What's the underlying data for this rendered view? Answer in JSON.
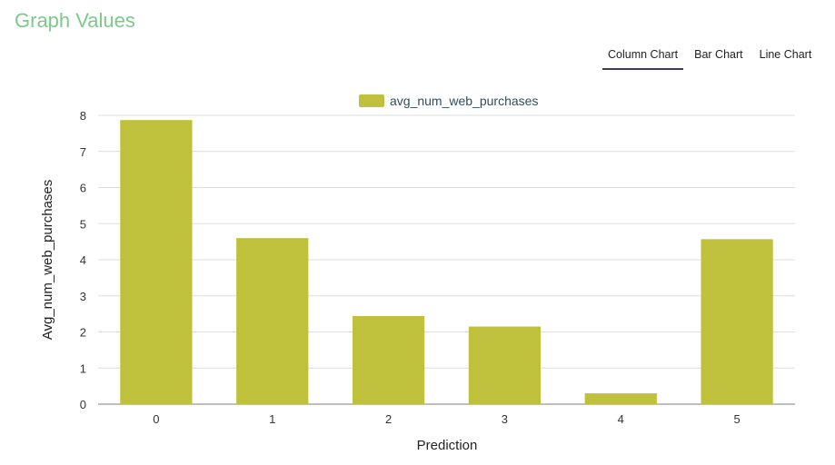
{
  "page": {
    "title": "Graph Values"
  },
  "tabs": [
    {
      "label": "Column Chart",
      "active": true
    },
    {
      "label": "Bar Chart",
      "active": false
    },
    {
      "label": "Line Chart",
      "active": false
    }
  ],
  "colors": {
    "bar": "#bfc13d",
    "grid": "#dddddd",
    "axis": "#999999",
    "title": "#7cc98a"
  },
  "chart_data": {
    "type": "bar",
    "title": "",
    "categories": [
      "0",
      "1",
      "2",
      "3",
      "4",
      "5"
    ],
    "series": [
      {
        "name": "avg_num_web_purchases",
        "values": [
          7.87,
          4.6,
          2.44,
          2.15,
          0.3,
          4.57
        ]
      }
    ],
    "xlabel": "Prediction",
    "ylabel": "Avg_num_web_purchases",
    "ylim": [
      0,
      8
    ],
    "yticks": [
      "0",
      "1",
      "2",
      "3",
      "4",
      "5",
      "6",
      "7",
      "8"
    ],
    "grid": true,
    "legend": "top-center"
  }
}
